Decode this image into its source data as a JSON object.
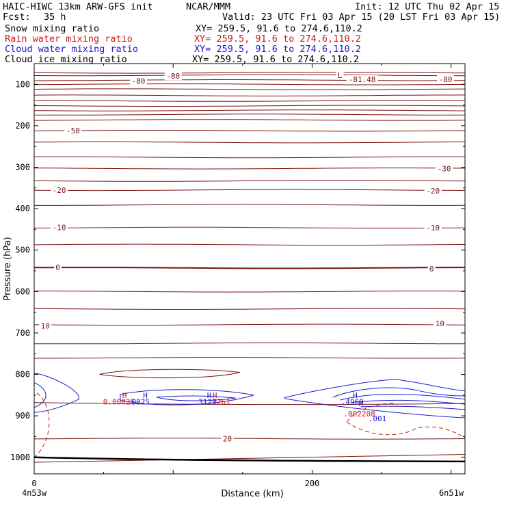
{
  "header": {
    "model": "HAIC-HIWC 13km ARW-GFS init",
    "org": "NCAR/MMM",
    "init": "Init: 12 UTC Thu 02 Apr 15",
    "fcst_label": "Fcst:",
    "fcst_value": "35 h",
    "valid": "Valid: 23 UTC Fri 03 Apr 15 (20 LST Fri 03 Apr 15)",
    "fields": [
      {
        "name": "Snow mixing ratio",
        "xy": "XY= 259.5, 91.6 to 274.6,110.2",
        "color": "#000000"
      },
      {
        "name": "Rain water mixing ratio",
        "xy": "XY= 259.5, 91.6 to 274.6,110.2",
        "color": "#d01818"
      },
      {
        "name": "Cloud water mixing ratio",
        "xy": "XY= 259.5, 91.6 to 274.6,110.2",
        "color": "#1a1ad0"
      },
      {
        "name": "Cloud ice mixing ratio",
        "xy": "XY= 259.5, 91.6 to 274.6,110.2",
        "color": "#000000"
      }
    ]
  },
  "chart_data": {
    "type": "cross-section contour",
    "xlabel": "Distance (km)",
    "ylabel": "Pressure (hPa)",
    "x_ticks": [
      0,
      200
    ],
    "y_ticks": [
      100,
      200,
      300,
      400,
      500,
      600,
      700,
      800,
      900,
      1000
    ],
    "xlim": [
      0,
      310
    ],
    "ylim": [
      1040,
      50
    ],
    "y_scale": "linear",
    "endpoints": {
      "left": "4n53w",
      "right": "6n51w"
    },
    "temperature_contours": {
      "color": "#7a1010",
      "labels": [
        {
          "text": "-80",
          "x": 100,
          "p": 80
        },
        {
          "text": "-80",
          "x": 75,
          "p": 92
        },
        {
          "text": "-81.48",
          "x": 236,
          "p": 88
        },
        {
          "text": "L",
          "x": 220,
          "p": 78
        },
        {
          "text": "-80",
          "x": 296,
          "p": 88
        },
        {
          "text": "-50",
          "x": 28,
          "p": 212
        },
        {
          "text": "-30",
          "x": 295,
          "p": 303
        },
        {
          "text": "-20",
          "x": 18,
          "p": 355
        },
        {
          "text": "-20",
          "x": 287,
          "p": 357
        },
        {
          "text": "-10",
          "x": 18,
          "p": 445
        },
        {
          "text": "-10",
          "x": 287,
          "p": 446
        },
        {
          "text": "0",
          "x": 17,
          "p": 542
        },
        {
          "text": "0",
          "x": 286,
          "p": 545
        },
        {
          "text": "10",
          "x": 8,
          "p": 683
        },
        {
          "text": "10",
          "x": 292,
          "p": 677
        },
        {
          "text": "20",
          "x": 139,
          "p": 955
        }
      ]
    },
    "maxima_labels": [
      {
        "text": "H",
        "x": 65,
        "p": 850,
        "color": "#d01818"
      },
      {
        "text": "H",
        "x": 80,
        "p": 850,
        "color": "#1a1ad0"
      },
      {
        "text": "0.00025",
        "x": 61,
        "p": 866,
        "color": "#d01818"
      },
      {
        "text": ".0025",
        "x": 75,
        "p": 866,
        "color": "#1a1ad0"
      },
      {
        "text": "H",
        "x": 126,
        "p": 850,
        "color": "#1a1ad0"
      },
      {
        "text": "H",
        "x": 130,
        "p": 850,
        "color": "#d01818"
      },
      {
        "text": ".3127",
        "x": 123,
        "p": 866,
        "color": "#1a1ad0"
      },
      {
        "text": ".0261",
        "x": 133,
        "p": 866,
        "color": "#d01818"
      },
      {
        "text": "H",
        "x": 231,
        "p": 850,
        "color": "#1a1ad0"
      },
      {
        "text": "H",
        "x": 235,
        "p": 870,
        "color": "#d01818"
      },
      {
        "text": ".4969",
        "x": 229,
        "p": 866,
        "color": "#1a1ad0"
      },
      {
        "text": ".002208",
        "x": 234,
        "p": 895,
        "color": "#d01818"
      },
      {
        "text": ".001",
        "x": 247,
        "p": 906,
        "color": "#1a1ad0"
      }
    ]
  }
}
